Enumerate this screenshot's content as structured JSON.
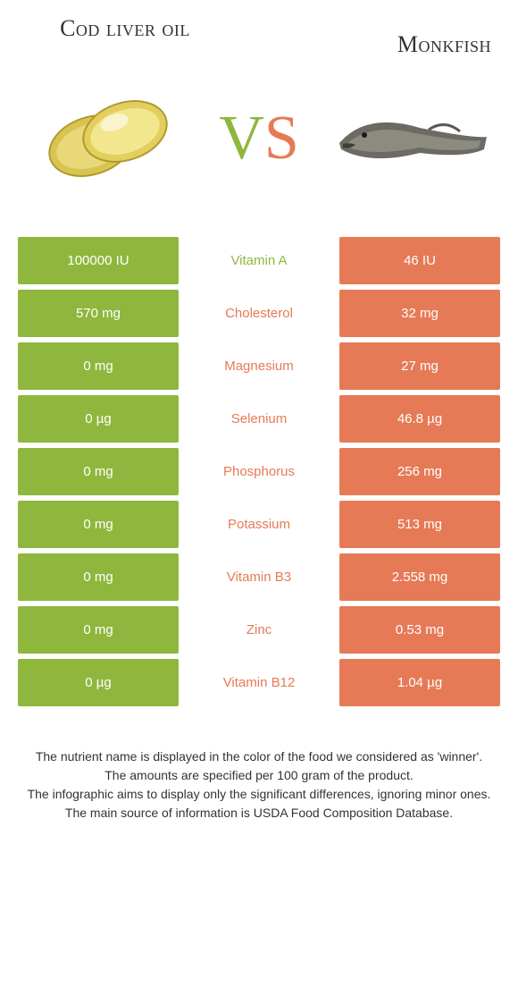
{
  "header": {
    "left_title": "Cod liver oil",
    "right_title": "Monkfish",
    "vs_v": "V",
    "vs_s": "S"
  },
  "colors": {
    "left": "#8fb73e",
    "right": "#e67a56",
    "background": "#ffffff",
    "text": "#333333"
  },
  "table": {
    "type": "comparison-table",
    "rows": [
      {
        "left": "100000 IU",
        "label": "Vitamin A",
        "right": "46 IU",
        "winner": "left"
      },
      {
        "left": "570 mg",
        "label": "Cholesterol",
        "right": "32 mg",
        "winner": "right"
      },
      {
        "left": "0 mg",
        "label": "Magnesium",
        "right": "27 mg",
        "winner": "right"
      },
      {
        "left": "0 µg",
        "label": "Selenium",
        "right": "46.8 µg",
        "winner": "right"
      },
      {
        "left": "0 mg",
        "label": "Phosphorus",
        "right": "256 mg",
        "winner": "right"
      },
      {
        "left": "0 mg",
        "label": "Potassium",
        "right": "513 mg",
        "winner": "right"
      },
      {
        "left": "0 mg",
        "label": "Vitamin B3",
        "right": "2.558 mg",
        "winner": "right"
      },
      {
        "left": "0 mg",
        "label": "Zinc",
        "right": "0.53 mg",
        "winner": "right"
      },
      {
        "left": "0 µg",
        "label": "Vitamin B12",
        "right": "1.04 µg",
        "winner": "right"
      }
    ]
  },
  "footer": {
    "line1": "The nutrient name is displayed in the color of the food we considered as 'winner'.",
    "line2": "The amounts are specified per 100 gram of the product.",
    "line3": "The infographic aims to display only the significant differences, ignoring minor ones.",
    "line4": "The main source of information is USDA Food Composition Database."
  }
}
